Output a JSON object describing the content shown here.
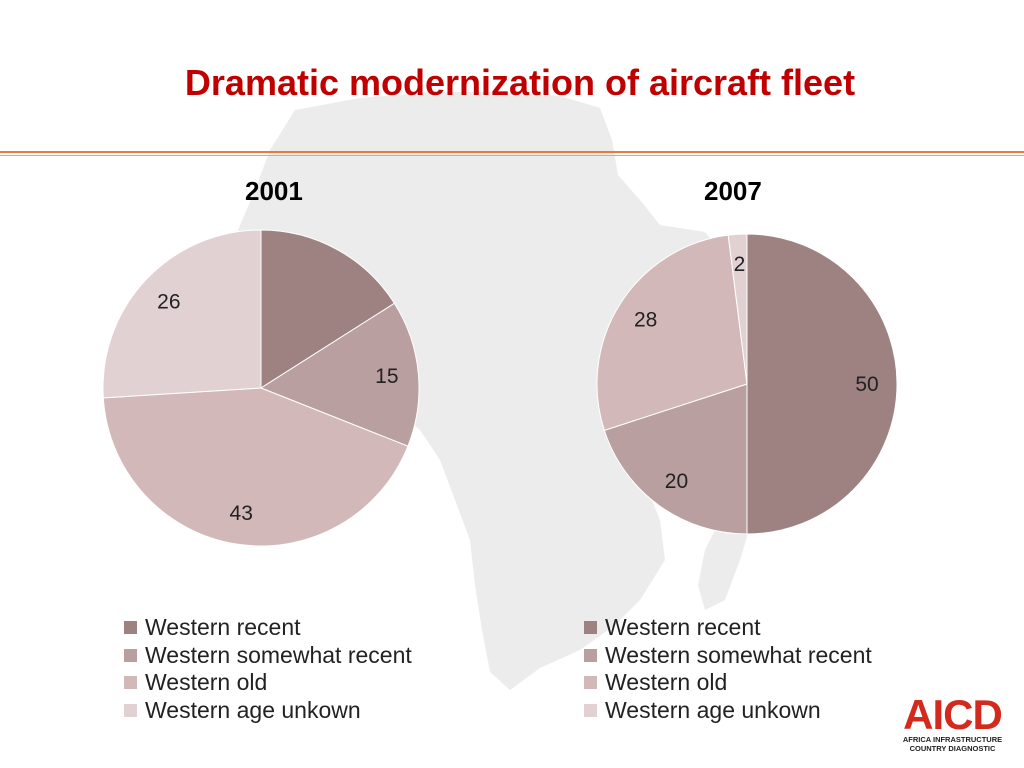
{
  "title": "Dramatic modernization of aircraft fleet",
  "colors": {
    "title": "#c00000",
    "rule": "#e87a3a",
    "map": "#ececec",
    "western_recent": "#9e8181",
    "western_somewhat_recent": "#b99f9f",
    "western_old": "#d2b8b9",
    "western_age_unknown": "#e2d1d2"
  },
  "chart_data": [
    {
      "type": "pie",
      "title": "2001",
      "categories": [
        "Western recent",
        "Western somewhat recent",
        "Western old",
        "Western age unkown"
      ],
      "values": [
        16,
        15,
        43,
        26
      ],
      "data_labels": [
        "",
        "15",
        "43",
        "26"
      ],
      "legend": [
        "Western recent",
        "Western somewhat recent",
        "Western old",
        "Western age unkown"
      ],
      "legend_position": "bottom"
    },
    {
      "type": "pie",
      "title": "2007",
      "categories": [
        "Western recent",
        "Western somewhat recent",
        "Western old",
        "Western age unkown"
      ],
      "values": [
        50,
        20,
        28,
        2
      ],
      "data_labels": [
        "50",
        "20",
        "28",
        "2"
      ],
      "legend": [
        "Western recent",
        "Western somewhat recent",
        "Western old",
        "Western age unkown"
      ],
      "legend_position": "bottom"
    }
  ],
  "logo": {
    "mark": "AICD",
    "line1": "AFRICA INFRASTRUCTURE",
    "line2": "COUNTRY DIAGNOSTIC"
  }
}
